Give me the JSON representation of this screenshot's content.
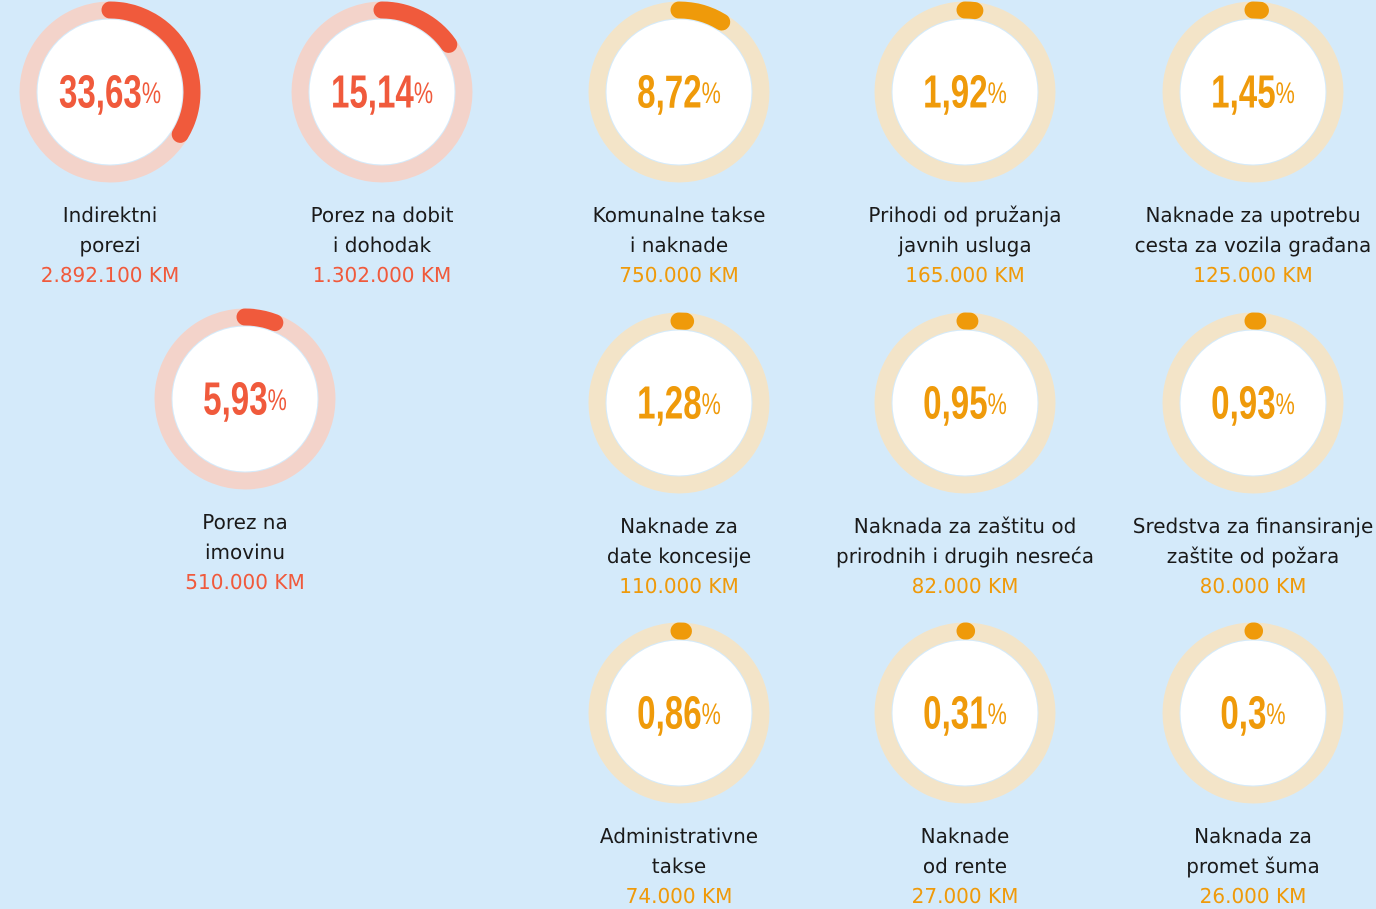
{
  "chart_data": [
    {
      "type": "donut",
      "value": 33.63,
      "value_label": "33,63",
      "unit": "%",
      "ylim": [
        0,
        100
      ],
      "label": [
        "Indirektni",
        "porezi"
      ],
      "amount": "2.892.100 KM",
      "color": "#f05a3c",
      "track": "#f3d3ca"
    },
    {
      "type": "donut",
      "value": 15.14,
      "value_label": "15,14",
      "unit": "%",
      "ylim": [
        0,
        100
      ],
      "label": [
        "Porez na dobit",
        "i dohodak"
      ],
      "amount": "1.302.000 KM",
      "color": "#f05a3c",
      "track": "#f3d3ca"
    },
    {
      "type": "donut",
      "value": 8.72,
      "value_label": "8,72",
      "unit": "%",
      "ylim": [
        0,
        100
      ],
      "label": [
        "Komunalne takse",
        "i naknade"
      ],
      "amount": "750.000 KM",
      "color": "#ef9a0a",
      "track": "#f3e4c8"
    },
    {
      "type": "donut",
      "value": 1.92,
      "value_label": "1,92",
      "unit": "%",
      "ylim": [
        0,
        100
      ],
      "label": [
        "Prihodi od pružanja",
        "javnih usluga"
      ],
      "amount": "165.000 KM",
      "color": "#ef9a0a",
      "track": "#f3e4c8"
    },
    {
      "type": "donut",
      "value": 1.45,
      "value_label": "1,45",
      "unit": "%",
      "ylim": [
        0,
        100
      ],
      "label": [
        "Naknade za upotrebu",
        "cesta za vozila građana"
      ],
      "amount": "125.000 KM",
      "color": "#ef9a0a",
      "track": "#f3e4c8"
    },
    {
      "type": "donut",
      "value": 5.93,
      "value_label": "5,93",
      "unit": "%",
      "ylim": [
        0,
        100
      ],
      "label": [
        "Porez na",
        "imovinu"
      ],
      "amount": "510.000 KM",
      "color": "#f05a3c",
      "track": "#f3d3ca"
    },
    {
      "type": "donut",
      "value": 1.28,
      "value_label": "1,28",
      "unit": "%",
      "ylim": [
        0,
        100
      ],
      "label": [
        "Naknade za",
        "date koncesije"
      ],
      "amount": "110.000 KM",
      "color": "#ef9a0a",
      "track": "#f3e4c8"
    },
    {
      "type": "donut",
      "value": 0.95,
      "value_label": "0,95",
      "unit": "%",
      "ylim": [
        0,
        100
      ],
      "label": [
        "Naknada za zaštitu od",
        "prirodnih i drugih nesreća"
      ],
      "amount": "82.000 KM",
      "color": "#ef9a0a",
      "track": "#f3e4c8"
    },
    {
      "type": "donut",
      "value": 0.93,
      "value_label": "0,93",
      "unit": "%",
      "ylim": [
        0,
        100
      ],
      "label": [
        "Sredstva za finansiranje",
        "zaštite od požara"
      ],
      "amount": "80.000 KM",
      "color": "#ef9a0a",
      "track": "#f3e4c8"
    },
    {
      "type": "donut",
      "value": 0.86,
      "value_label": "0,86",
      "unit": "%",
      "ylim": [
        0,
        100
      ],
      "label": [
        "Administrativne",
        "takse"
      ],
      "amount": "74.000 KM",
      "color": "#ef9a0a",
      "track": "#f3e4c8"
    },
    {
      "type": "donut",
      "value": 0.31,
      "value_label": "0,31",
      "unit": "%",
      "ylim": [
        0,
        100
      ],
      "label": [
        "Naknade",
        "od rente"
      ],
      "amount": "27.000 KM",
      "color": "#ef9a0a",
      "track": "#f3e4c8"
    },
    {
      "type": "donut",
      "value": 0.3,
      "value_label": "0,3",
      "unit": "%",
      "ylim": [
        0,
        100
      ],
      "label": [
        "Naknada za",
        "promet šuma"
      ],
      "amount": "26.000 KM",
      "color": "#ef9a0a",
      "track": "#f3e4c8"
    }
  ]
}
